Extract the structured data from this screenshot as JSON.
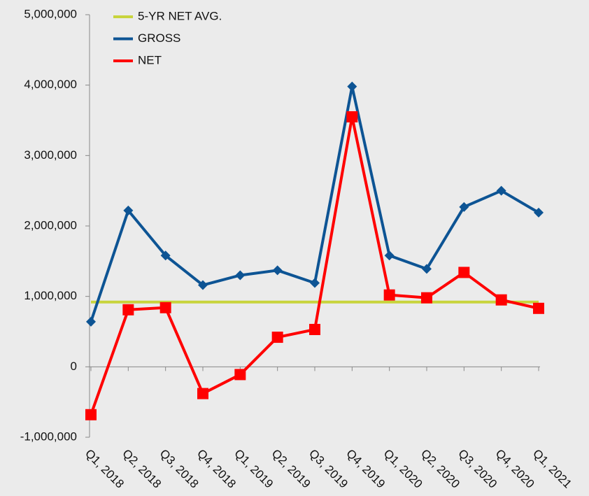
{
  "chart_data": {
    "type": "line",
    "categories": [
      "Q1, 2018",
      "Q2, 2018",
      "Q3, 2018",
      "Q4, 2018",
      "Q1, 2019",
      "Q2, 2019",
      "Q3, 2019",
      "Q4, 2019",
      "Q1, 2020",
      "Q2, 2020",
      "Q3, 2020",
      "Q4, 2020",
      "Q1, 2021"
    ],
    "series": [
      {
        "name": "5-YR NET AVG.",
        "color": "#c8d43c",
        "values": [
          920000,
          920000,
          920000,
          920000,
          920000,
          920000,
          920000,
          920000,
          920000,
          920000,
          920000,
          920000,
          920000
        ]
      },
      {
        "name": "GROSS",
        "color": "#0d5494",
        "marker": "diamond",
        "values": [
          640000,
          2220000,
          1580000,
          1160000,
          1300000,
          1370000,
          1190000,
          3980000,
          1580000,
          1390000,
          2270000,
          2500000,
          2190000
        ]
      },
      {
        "name": "NET",
        "color": "#ff0000",
        "marker": "square",
        "values": [
          -680000,
          810000,
          840000,
          -380000,
          -110000,
          420000,
          530000,
          3550000,
          1020000,
          980000,
          1340000,
          950000,
          830000
        ]
      }
    ],
    "ylim": [
      -1000000,
      5000000
    ],
    "yticks": [
      {
        "value": -1000000,
        "label": "-1,000,000"
      },
      0,
      {
        "value": 1000000,
        "label": "1,000,000"
      },
      {
        "value": 2000000,
        "label": "2,000,000"
      },
      {
        "value": 3000000,
        "label": "3,000,000"
      },
      {
        "value": 4000000,
        "label": "4,000,000"
      },
      {
        "value": 5000000,
        "label": "5,000,000"
      }
    ],
    "legend": "top-left"
  }
}
